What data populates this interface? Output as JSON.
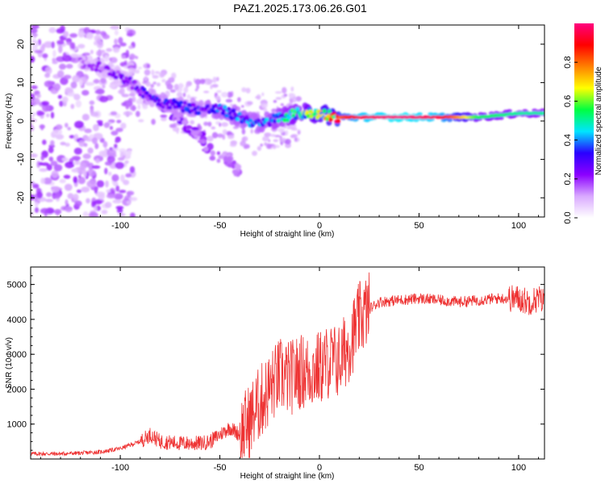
{
  "title": "PAZ1.2025.173.06.26.G01",
  "chart_data": [
    {
      "type": "heatmap",
      "xlabel": "Height of straight line (km)",
      "ylabel": "Frequency (Hz)",
      "xlim": [
        -145,
        113
      ],
      "ylim": [
        -25,
        25
      ],
      "xticks": [
        -100,
        -50,
        0,
        50,
        100
      ],
      "yticks": [
        -20,
        -10,
        0,
        10,
        20
      ],
      "colorbar": {
        "label": "Normalized spectral amplitude",
        "range": [
          0,
          1
        ],
        "ticks": [
          "0.0",
          "0.2",
          "0.4",
          "0.6",
          "0.8"
        ],
        "colors": [
          "#ffffff",
          "#d9a9ff",
          "#8b00ff",
          "#2a00ff",
          "#00e5ff",
          "#00ff40",
          "#ffff00",
          "#ff8000",
          "#ff0000",
          "#ff007f"
        ]
      },
      "ridge": {
        "height_km": [
          -120,
          -110,
          -100,
          -90,
          -80,
          -70,
          -60,
          -50,
          -40,
          -30,
          -20,
          -10,
          0,
          10,
          20,
          40,
          60,
          80,
          100,
          113
        ],
        "frequency_hz": [
          15,
          14,
          12,
          8,
          5,
          4,
          3,
          3,
          1,
          -1,
          1,
          2,
          2,
          1,
          1,
          1,
          1,
          1,
          2,
          2
        ],
        "amplitude": [
          0.15,
          0.18,
          0.2,
          0.25,
          0.3,
          0.3,
          0.3,
          0.35,
          0.35,
          0.35,
          0.4,
          0.5,
          0.6,
          0.8,
          0.95,
          1.0,
          0.95,
          0.55,
          0.5,
          0.5
        ]
      },
      "secondary_branch": {
        "height_km": [
          -80,
          -70,
          -60,
          -55,
          -45,
          -40
        ],
        "frequency_hz": [
          3,
          0,
          -4,
          -8,
          -10,
          -14
        ],
        "amplitude": [
          0.2,
          0.2,
          0.2,
          0.2,
          0.15,
          0.15
        ]
      }
    },
    {
      "type": "line",
      "xlabel": "Height of straight line (km)",
      "ylabel": "SNR (10 * v/v)",
      "xlim": [
        -145,
        113
      ],
      "ylim": [
        0,
        5500
      ],
      "xticks": [
        -100,
        -50,
        0,
        50,
        100
      ],
      "yticks": [
        1000,
        2000,
        3000,
        4000,
        5000
      ],
      "series": [
        {
          "color": "#ee3333",
          "x": [
            -145,
            -130,
            -120,
            -110,
            -100,
            -90,
            -85,
            -80,
            -70,
            -60,
            -55,
            -50,
            -45,
            -40,
            -35,
            -30,
            -25,
            -20,
            -15,
            -10,
            -5,
            0,
            5,
            10,
            15,
            20,
            25,
            30,
            40,
            50,
            60,
            70,
            80,
            90,
            100,
            105,
            110,
            113
          ],
          "y": [
            150,
            150,
            170,
            200,
            300,
            500,
            700,
            500,
            450,
            450,
            500,
            700,
            900,
            700,
            1100,
            1600,
            2000,
            2400,
            2300,
            2500,
            2500,
            2600,
            2800,
            2800,
            3300,
            4000,
            4300,
            4500,
            4550,
            4600,
            4550,
            4500,
            4550,
            4600,
            4600,
            4500,
            4600,
            4500
          ]
        }
      ]
    }
  ]
}
